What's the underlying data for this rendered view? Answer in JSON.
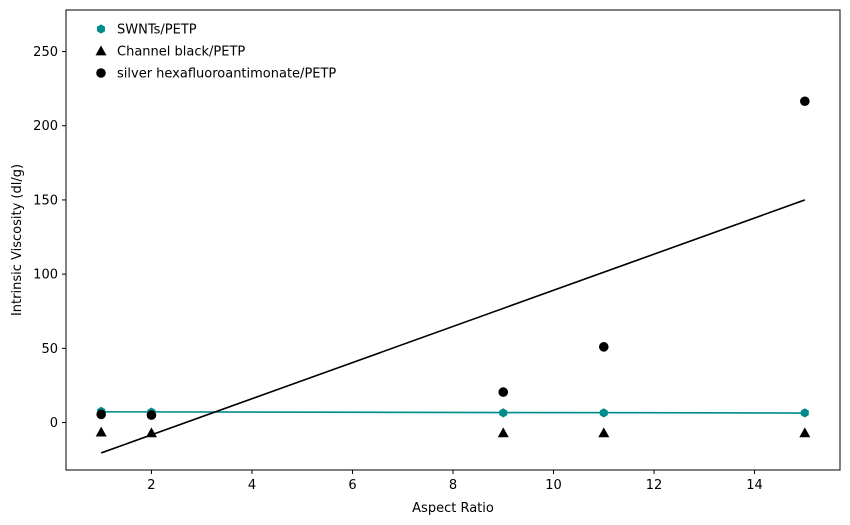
{
  "chart_data": {
    "type": "scatter",
    "xlabel": "Aspect Ratio",
    "ylabel": "Intrinsic Viscosity (dl/g)",
    "xlim": [
      0.3,
      15.7
    ],
    "ylim": [
      -32,
      278
    ],
    "xticks": [
      2,
      4,
      6,
      8,
      10,
      12,
      14
    ],
    "yticks": [
      0,
      50,
      100,
      150,
      200,
      250
    ],
    "grid": false,
    "legend_position": "top-left",
    "series": [
      {
        "name": "SWNTs/PETP",
        "marker": "hexagon",
        "color": "#008b8b",
        "x": [
          1,
          2,
          9,
          11,
          15
        ],
        "y": [
          7.5,
          7.0,
          6.5,
          6.5,
          6.5
        ],
        "fit_line": {
          "x": [
            1,
            15
          ],
          "y": [
            7.2,
            6.4
          ]
        }
      },
      {
        "name": "Channel black/PETP",
        "marker": "triangle",
        "color": "#000000",
        "x": [
          1,
          2,
          9,
          11,
          15
        ],
        "y": [
          -6.5,
          -7.0,
          -7.0,
          -7.0,
          -7.0
        ]
      },
      {
        "name": "silver hexafluoroantimonate/PETP",
        "marker": "circle",
        "color": "#000000",
        "x": [
          1,
          2,
          9,
          11,
          15
        ],
        "y": [
          5.5,
          5.0,
          20.5,
          51.0,
          216.5
        ],
        "fit_line": {
          "x": [
            1,
            15
          ],
          "y": [
            -20.5,
            150.0
          ]
        }
      }
    ]
  }
}
